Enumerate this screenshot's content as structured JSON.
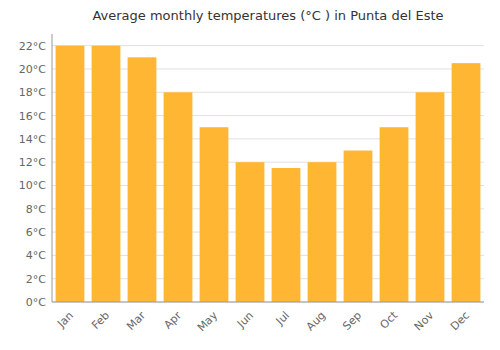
{
  "chart_data": {
    "type": "bar",
    "title": "Average monthly temperatures (°C ) in Punta del Este",
    "categories": [
      "Jan",
      "Feb",
      "Mar",
      "Apr",
      "May",
      "Jun",
      "Jul",
      "Aug",
      "Sep",
      "Oct",
      "Nov",
      "Dec"
    ],
    "values": [
      22,
      22,
      21,
      18,
      15,
      12,
      11.5,
      12,
      13,
      15,
      18,
      20.5
    ],
    "color": "#FFB733",
    "ylim": [
      0,
      23
    ],
    "yticks": [
      {
        "value": 0,
        "label": "0°C"
      },
      {
        "value": 2,
        "label": "2°C"
      },
      {
        "value": 4,
        "label": "4°C"
      },
      {
        "value": 6,
        "label": "6°C"
      },
      {
        "value": 8,
        "label": "8°C"
      },
      {
        "value": 10,
        "label": "10°C"
      },
      {
        "value": 12,
        "label": "12°C"
      },
      {
        "value": 14,
        "label": "14°C"
      },
      {
        "value": 16,
        "label": "16°C"
      },
      {
        "value": 18,
        "label": "18°C"
      },
      {
        "value": 20,
        "label": "20°C"
      },
      {
        "value": 22,
        "label": "22°C"
      }
    ],
    "grid": true
  }
}
